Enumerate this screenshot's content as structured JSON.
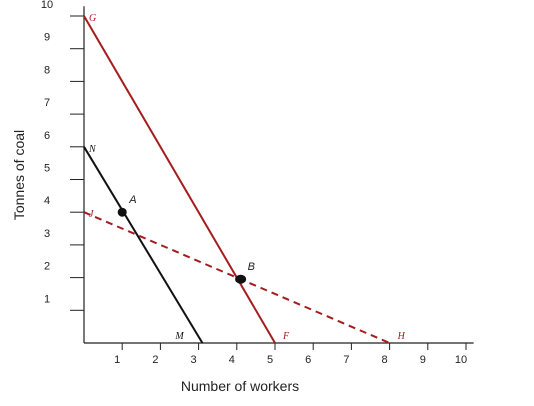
{
  "chart_data": {
    "type": "line",
    "xlabel": "Number of workers",
    "ylabel": "Tonnes of coal",
    "xlim": [
      0,
      10.2
    ],
    "ylim": [
      0,
      10.3
    ],
    "x_ticks": [
      "1",
      "2",
      "3",
      "4",
      "5",
      "6",
      "7",
      "8",
      "9",
      "10"
    ],
    "y_ticks": [
      "1",
      "2",
      "3",
      "4",
      "5",
      "6",
      "7",
      "8",
      "9",
      "10"
    ],
    "grid": false,
    "colors": {
      "red": "#a51c1c",
      "black": "#111111",
      "axis": "#222222"
    },
    "series": [
      {
        "points": [
          [
            0,
            6
          ],
          [
            3.1,
            0
          ]
        ],
        "color": "#111111",
        "style": "solid",
        "start_label": "N",
        "end_label": "M"
      },
      {
        "points": [
          [
            0,
            10
          ],
          [
            5,
            0
          ]
        ],
        "color": "#a51c1c",
        "style": "solid",
        "start_label": "G",
        "end_label": "F"
      },
      {
        "points": [
          [
            0,
            4
          ],
          [
            8,
            0
          ]
        ],
        "color": "#a51c1c",
        "style": "dashed",
        "start_label": "J",
        "end_label": "H"
      }
    ],
    "points": [
      {
        "label": "A",
        "x": 1,
        "y": 4
      },
      {
        "label": "B",
        "x": 4.1,
        "y": 1.95
      }
    ]
  }
}
